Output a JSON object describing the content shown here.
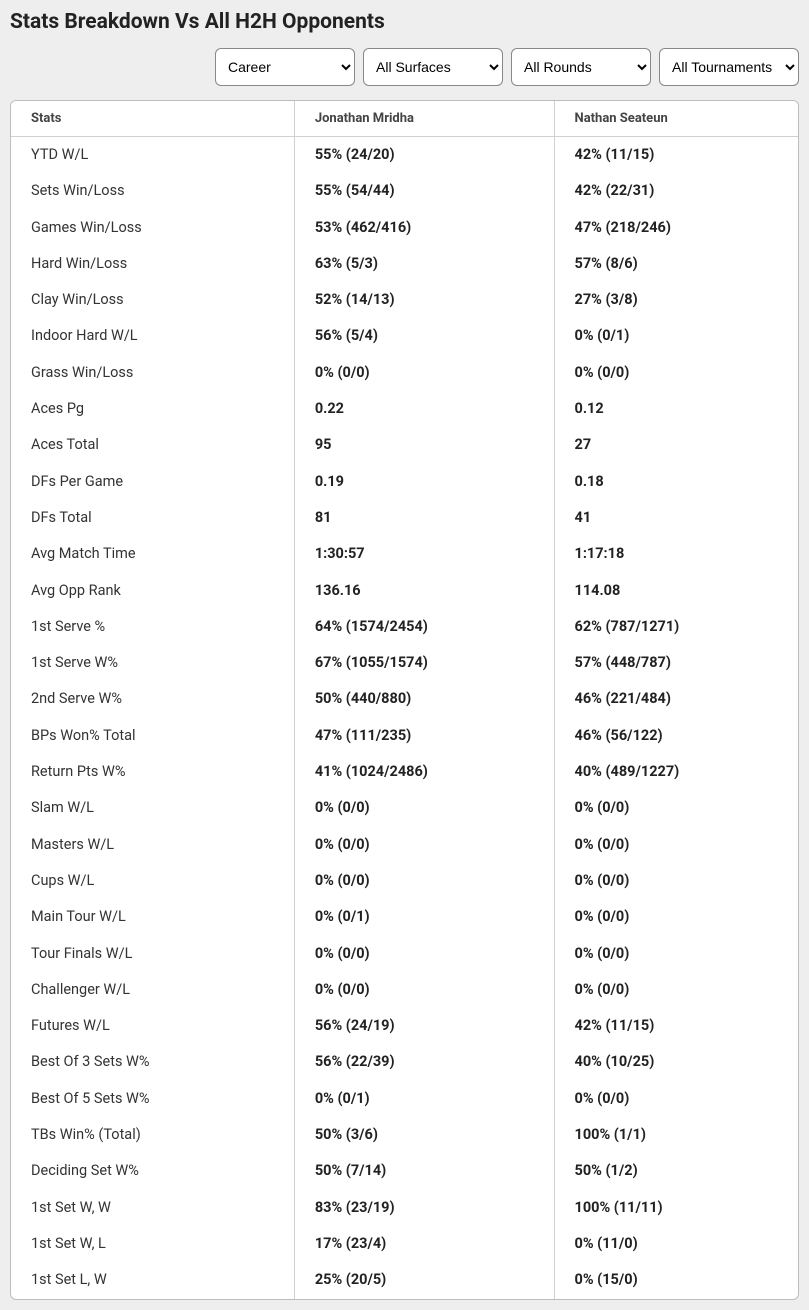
{
  "title": "Stats Breakdown Vs All H2H Opponents",
  "filters": {
    "career": "Career",
    "surfaces": "All Surfaces",
    "rounds": "All Rounds",
    "tournaments": "All Tournaments"
  },
  "table": {
    "headers": {
      "stats": "Stats",
      "player1": "Jonathan Mridha",
      "player2": "Nathan Seateun"
    },
    "rows": [
      {
        "stat": "YTD W/L",
        "p1": "55% (24/20)",
        "p2": "42% (11/15)"
      },
      {
        "stat": "Sets Win/Loss",
        "p1": "55% (54/44)",
        "p2": "42% (22/31)"
      },
      {
        "stat": "Games Win/Loss",
        "p1": "53% (462/416)",
        "p2": "47% (218/246)"
      },
      {
        "stat": "Hard Win/Loss",
        "p1": "63% (5/3)",
        "p2": "57% (8/6)"
      },
      {
        "stat": "Clay Win/Loss",
        "p1": "52% (14/13)",
        "p2": "27% (3/8)"
      },
      {
        "stat": "Indoor Hard W/L",
        "p1": "56% (5/4)",
        "p2": "0% (0/1)"
      },
      {
        "stat": "Grass Win/Loss",
        "p1": "0% (0/0)",
        "p2": "0% (0/0)"
      },
      {
        "stat": "Aces Pg",
        "p1": "0.22",
        "p2": "0.12"
      },
      {
        "stat": "Aces Total",
        "p1": "95",
        "p2": "27"
      },
      {
        "stat": "DFs Per Game",
        "p1": "0.19",
        "p2": "0.18"
      },
      {
        "stat": "DFs Total",
        "p1": "81",
        "p2": "41"
      },
      {
        "stat": "Avg Match Time",
        "p1": "1:30:57",
        "p2": "1:17:18"
      },
      {
        "stat": "Avg Opp Rank",
        "p1": "136.16",
        "p2": "114.08"
      },
      {
        "stat": "1st Serve %",
        "p1": "64% (1574/2454)",
        "p2": "62% (787/1271)"
      },
      {
        "stat": "1st Serve W%",
        "p1": "67% (1055/1574)",
        "p2": "57% (448/787)"
      },
      {
        "stat": "2nd Serve W%",
        "p1": "50% (440/880)",
        "p2": "46% (221/484)"
      },
      {
        "stat": "BPs Won% Total",
        "p1": "47% (111/235)",
        "p2": "46% (56/122)"
      },
      {
        "stat": "Return Pts W%",
        "p1": "41% (1024/2486)",
        "p2": "40% (489/1227)"
      },
      {
        "stat": "Slam W/L",
        "p1": "0% (0/0)",
        "p2": "0% (0/0)"
      },
      {
        "stat": "Masters W/L",
        "p1": "0% (0/0)",
        "p2": "0% (0/0)"
      },
      {
        "stat": "Cups W/L",
        "p1": "0% (0/0)",
        "p2": "0% (0/0)"
      },
      {
        "stat": "Main Tour W/L",
        "p1": "0% (0/1)",
        "p2": "0% (0/0)"
      },
      {
        "stat": "Tour Finals W/L",
        "p1": "0% (0/0)",
        "p2": "0% (0/0)"
      },
      {
        "stat": "Challenger W/L",
        "p1": "0% (0/0)",
        "p2": "0% (0/0)"
      },
      {
        "stat": "Futures W/L",
        "p1": "56% (24/19)",
        "p2": "42% (11/15)"
      },
      {
        "stat": "Best Of 3 Sets W%",
        "p1": "56% (22/39)",
        "p2": "40% (10/25)"
      },
      {
        "stat": "Best Of 5 Sets W%",
        "p1": "0% (0/1)",
        "p2": "0% (0/0)"
      },
      {
        "stat": "TBs Win% (Total)",
        "p1": "50% (3/6)",
        "p2": "100% (1/1)"
      },
      {
        "stat": "Deciding Set W%",
        "p1": "50% (7/14)",
        "p2": "50% (1/2)"
      },
      {
        "stat": "1st Set W, W",
        "p1": "83% (23/19)",
        "p2": "100% (11/11)"
      },
      {
        "stat": "1st Set W, L",
        "p1": "17% (23/4)",
        "p2": "0% (11/0)"
      },
      {
        "stat": "1st Set L, W",
        "p1": "25% (20/5)",
        "p2": "0% (15/0)"
      }
    ]
  },
  "colors": {
    "page_bg": "#eeeeee",
    "card_bg": "#ffffff",
    "border": "#bdbdbd",
    "cell_border": "#d0d0d0",
    "text": "#333333",
    "bold_text": "#222222"
  }
}
